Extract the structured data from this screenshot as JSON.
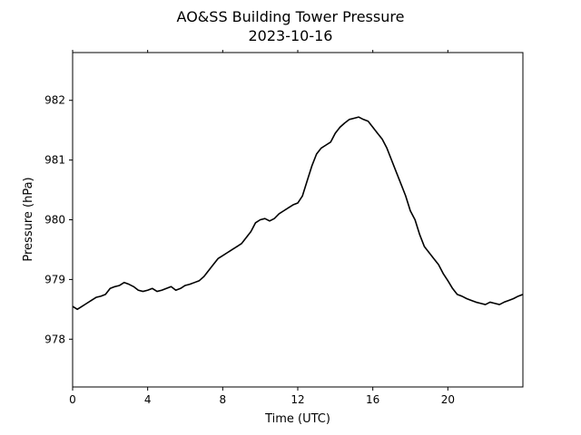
{
  "chart_data": {
    "type": "line",
    "title": "AO&SS Building Tower Pressure",
    "subtitle": "2023-10-16",
    "xlabel": "Time (UTC)",
    "ylabel": "Pressure (hPa)",
    "xlim": [
      0,
      24
    ],
    "ylim": [
      977.2,
      982.8
    ],
    "xticks": [
      0,
      4,
      8,
      12,
      16,
      20
    ],
    "yticks": [
      978,
      979,
      980,
      981,
      982
    ],
    "grid": false,
    "line_color": "#000000",
    "series": [
      {
        "x": [
          0,
          0.25,
          0.5,
          0.75,
          1,
          1.25,
          1.5,
          1.75,
          2,
          2.25,
          2.5,
          2.75,
          3,
          3.25,
          3.5,
          3.75,
          4,
          4.25,
          4.5,
          4.75,
          5,
          5.25,
          5.5,
          5.75,
          6,
          6.25,
          6.5,
          6.75,
          7,
          7.25,
          7.5,
          7.75,
          8,
          8.25,
          8.5,
          8.75,
          9,
          9.25,
          9.5,
          9.75,
          10,
          10.25,
          10.5,
          10.75,
          11,
          11.25,
          11.5,
          11.75,
          12,
          12.25,
          12.5,
          12.75,
          13,
          13.25,
          13.5,
          13.75,
          14,
          14.25,
          14.5,
          14.75,
          15,
          15.25,
          15.5,
          15.75,
          16,
          16.25,
          16.5,
          16.75,
          17,
          17.25,
          17.5,
          17.75,
          18,
          18.25,
          18.5,
          18.75,
          19,
          19.25,
          19.5,
          19.75,
          20,
          20.25,
          20.5,
          20.75,
          21,
          21.25,
          21.5,
          21.75,
          22,
          22.25,
          22.5,
          22.75,
          23,
          23.25,
          23.5,
          23.75,
          24
        ],
        "y": [
          978.55,
          978.5,
          978.55,
          978.6,
          978.65,
          978.7,
          978.72,
          978.75,
          978.85,
          978.88,
          978.9,
          978.95,
          978.92,
          978.88,
          978.82,
          978.8,
          978.82,
          978.85,
          978.8,
          978.82,
          978.85,
          978.88,
          978.82,
          978.85,
          978.9,
          978.92,
          978.95,
          978.98,
          979.05,
          979.15,
          979.25,
          979.35,
          979.4,
          979.45,
          979.5,
          979.55,
          979.6,
          979.7,
          979.8,
          979.95,
          980.0,
          980.02,
          979.98,
          980.02,
          980.1,
          980.15,
          980.2,
          980.25,
          980.28,
          980.4,
          980.65,
          980.9,
          981.1,
          981.2,
          981.25,
          981.3,
          981.45,
          981.55,
          981.62,
          981.68,
          981.7,
          981.72,
          981.68,
          981.65,
          981.55,
          981.45,
          981.35,
          981.2,
          981.0,
          980.8,
          980.6,
          980.4,
          980.15,
          980.0,
          979.75,
          979.55,
          979.45,
          979.35,
          979.25,
          979.1,
          978.98,
          978.85,
          978.75,
          978.72,
          978.68,
          978.65,
          978.62,
          978.6,
          978.58,
          978.62,
          978.6,
          978.58,
          978.62,
          978.65,
          978.68,
          978.72,
          978.75
        ]
      }
    ]
  }
}
